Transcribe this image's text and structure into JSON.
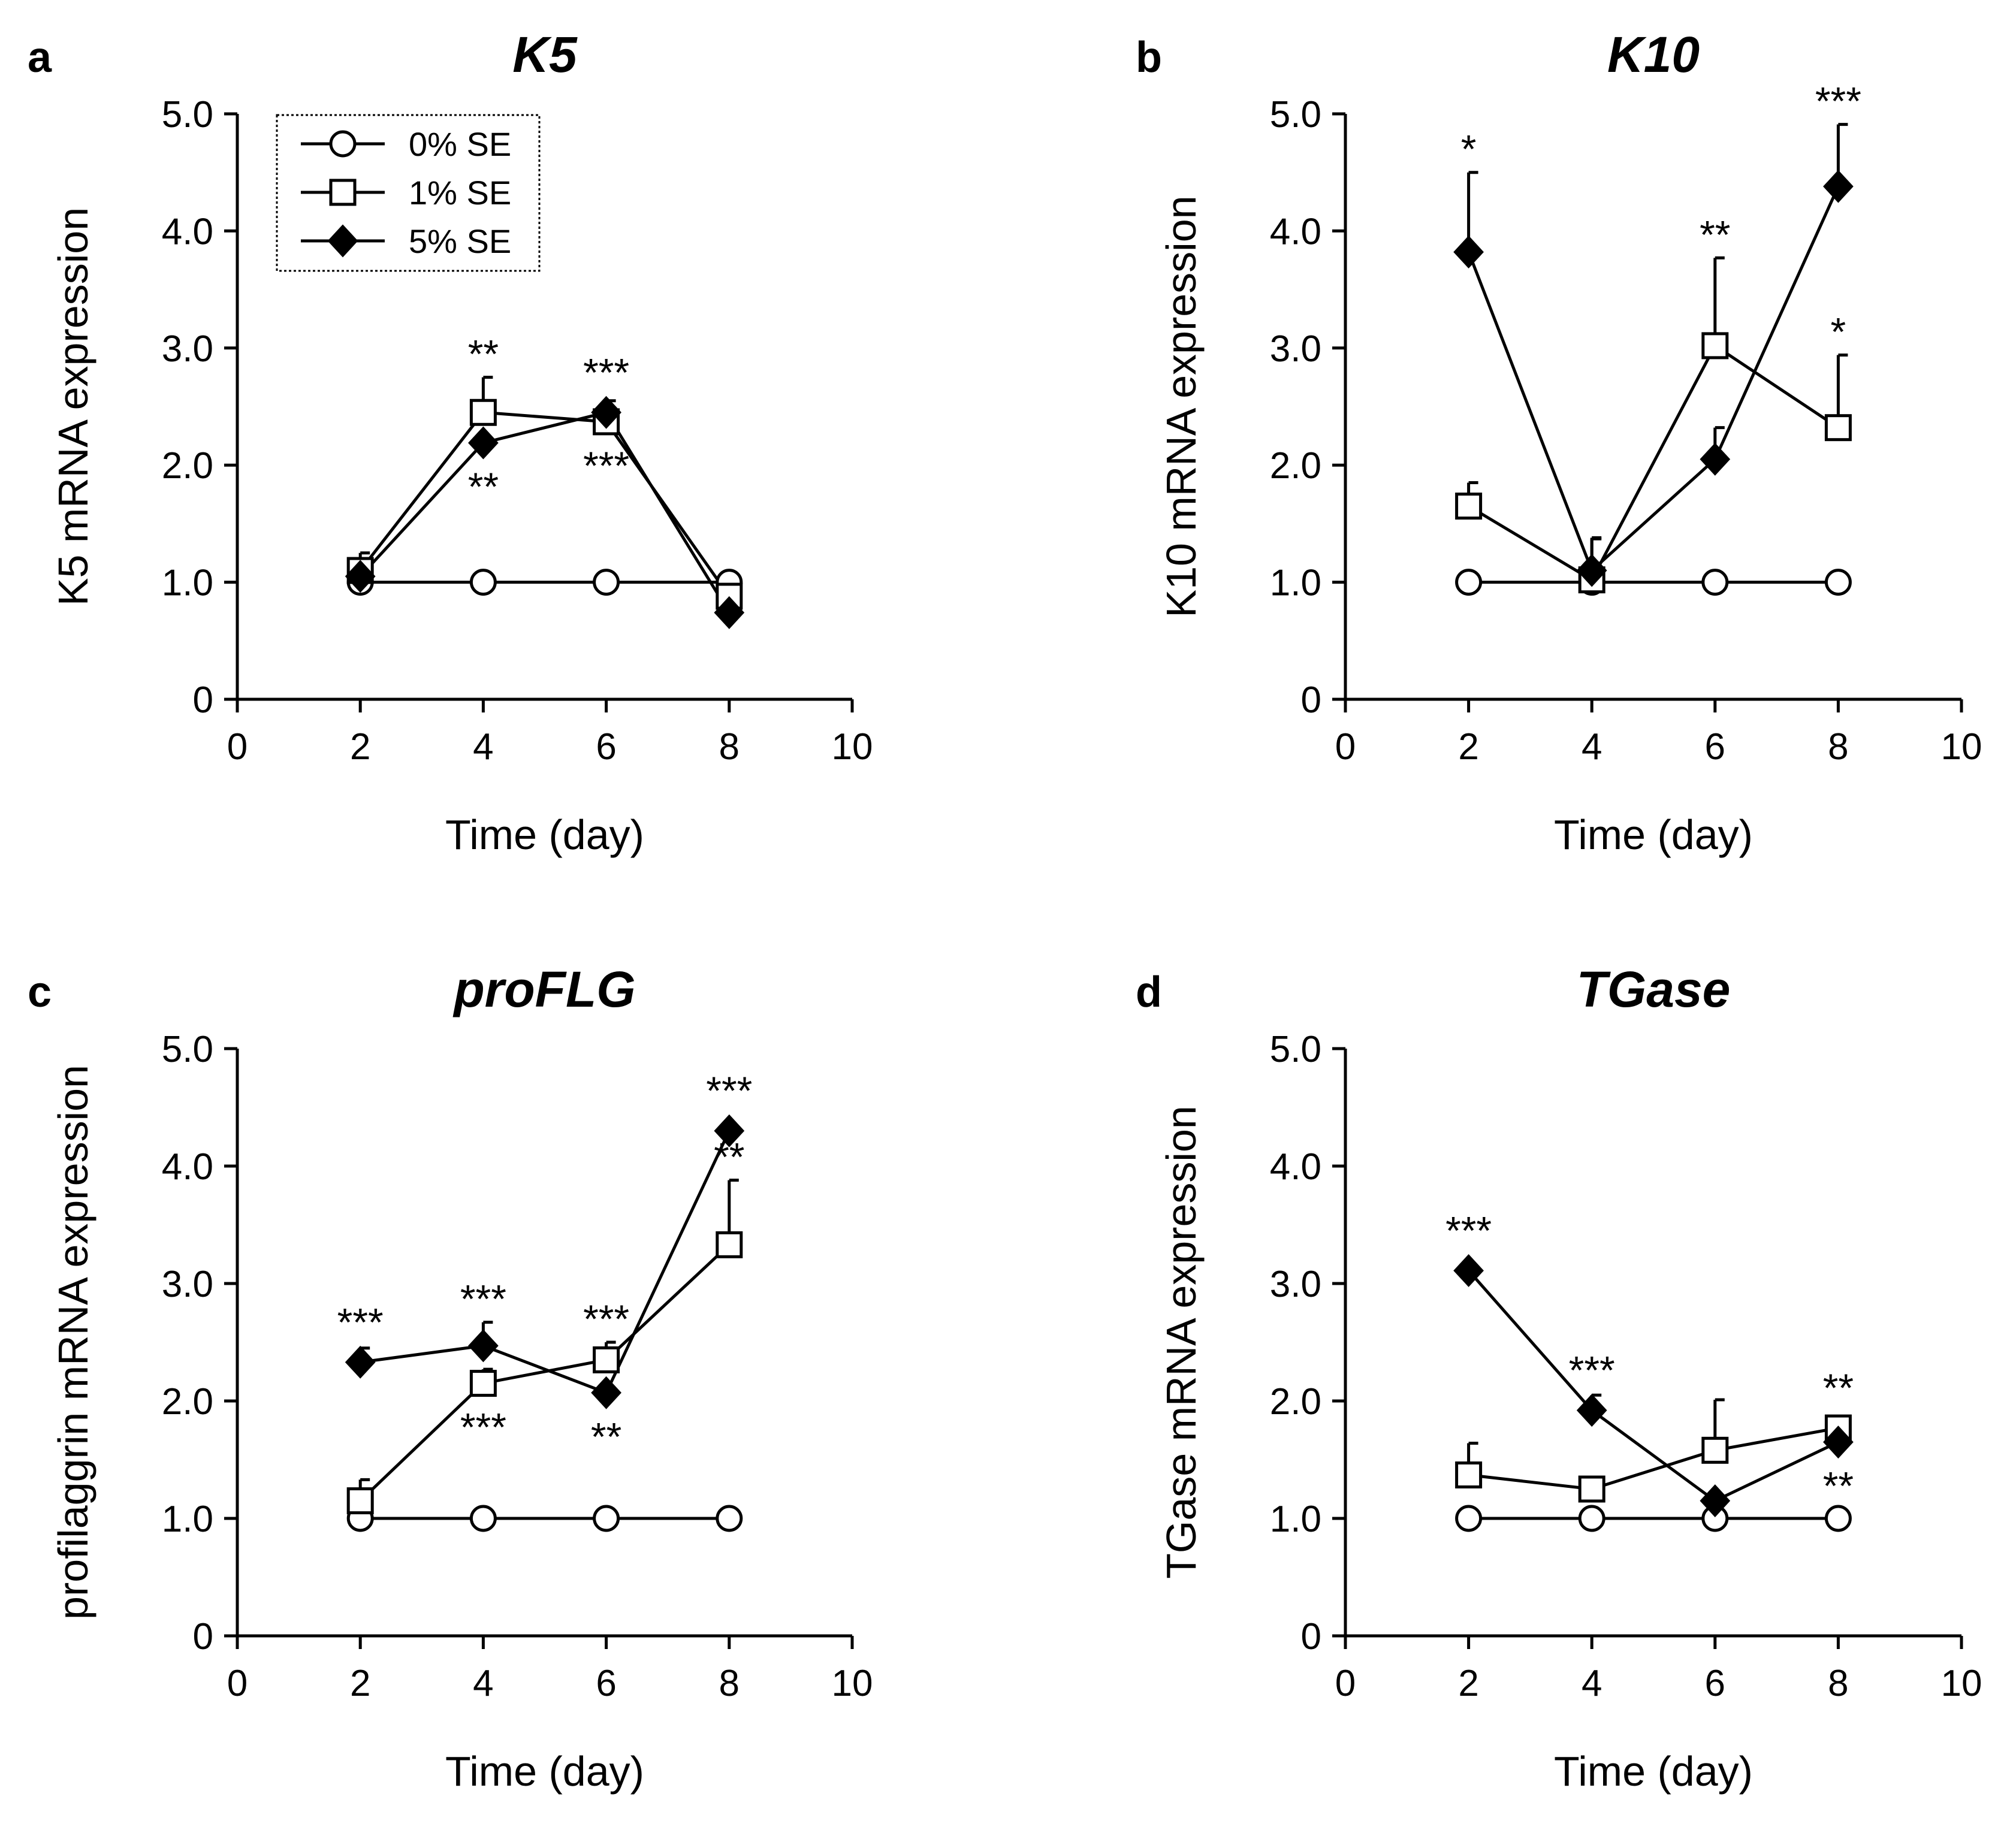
{
  "chart_data": [
    {
      "type": "line",
      "panel_label": "a",
      "title": "K5",
      "xlabel": "Time (day)",
      "ylabel": "K5 mRNA expression",
      "xlim": [
        0,
        10
      ],
      "ylim": [
        0,
        5
      ],
      "xticks": [
        "0",
        "2",
        "4",
        "6",
        "8",
        "10"
      ],
      "yticks": [
        "0",
        "1.0",
        "2.0",
        "3.0",
        "4.0",
        "5.0"
      ],
      "grid": false,
      "legend": {
        "position": "top-left",
        "entries": [
          "0% SE",
          "1% SE",
          "5% SE"
        ]
      },
      "series": [
        {
          "name": "0% SE",
          "marker": "circle",
          "x": [
            2,
            4,
            6,
            8
          ],
          "values": [
            1.0,
            1.0,
            1.0,
            1.0
          ],
          "errors": [
            0,
            0,
            0,
            0
          ]
        },
        {
          "name": "1% SE",
          "marker": "square",
          "x": [
            2,
            4,
            6,
            8
          ],
          "values": [
            1.1,
            2.45,
            2.37,
            0.88
          ],
          "errors": [
            0.15,
            0.3,
            0.12,
            0
          ],
          "stars": [
            {
              "x": 4,
              "label": "**",
              "pos": "above"
            },
            {
              "x": 6,
              "label": "***",
              "pos": "below"
            }
          ]
        },
        {
          "name": "5% SE",
          "marker": "diamond",
          "x": [
            2,
            4,
            6,
            8
          ],
          "values": [
            1.05,
            2.19,
            2.45,
            0.74
          ],
          "errors": [
            0,
            0,
            0.1,
            0
          ],
          "stars": [
            {
              "x": 4,
              "label": "**",
              "pos": "below"
            },
            {
              "x": 6,
              "label": "***",
              "pos": "above"
            }
          ]
        }
      ]
    },
    {
      "type": "line",
      "panel_label": "b",
      "title": "K10",
      "xlabel": "Time (day)",
      "ylabel": "K10 mRNA expression",
      "xlim": [
        0,
        10
      ],
      "ylim": [
        0,
        5
      ],
      "xticks": [
        "0",
        "2",
        "4",
        "6",
        "8",
        "10"
      ],
      "yticks": [
        "0",
        "1.0",
        "2.0",
        "3.0",
        "4.0",
        "5.0"
      ],
      "grid": false,
      "series": [
        {
          "name": "0% SE",
          "marker": "circle",
          "x": [
            2,
            4,
            6,
            8
          ],
          "values": [
            1.0,
            1.0,
            1.0,
            1.0
          ],
          "errors": [
            0,
            0,
            0,
            0
          ]
        },
        {
          "name": "1% SE",
          "marker": "square",
          "x": [
            2,
            4,
            6,
            8
          ],
          "values": [
            1.65,
            1.02,
            3.02,
            2.32
          ],
          "errors": [
            0.2,
            0.35,
            0.75,
            0.62
          ],
          "stars": [
            {
              "x": 6,
              "label": "**",
              "pos": "above"
            },
            {
              "x": 8,
              "label": "*",
              "pos": "above"
            }
          ]
        },
        {
          "name": "5% SE",
          "marker": "diamond",
          "x": [
            2,
            4,
            6,
            8
          ],
          "values": [
            3.82,
            1.1,
            2.05,
            4.38
          ],
          "errors": [
            0.68,
            0.28,
            0.27,
            0.53
          ],
          "stars": [
            {
              "x": 2,
              "label": "*",
              "pos": "above"
            },
            {
              "x": 8,
              "label": "***",
              "pos": "above"
            }
          ]
        }
      ]
    },
    {
      "type": "line",
      "panel_label": "c",
      "title": "proFLG",
      "xlabel": "Time (day)",
      "ylabel": "profilaggrin mRNA expression",
      "xlim": [
        0,
        10
      ],
      "ylim": [
        0,
        5
      ],
      "xticks": [
        "0",
        "2",
        "4",
        "6",
        "8",
        "10"
      ],
      "yticks": [
        "0",
        "1.0",
        "2.0",
        "3.0",
        "4.0",
        "5.0"
      ],
      "grid": false,
      "series": [
        {
          "name": "0% SE",
          "marker": "circle",
          "x": [
            2,
            4,
            6,
            8
          ],
          "values": [
            1.0,
            1.0,
            1.0,
            1.0
          ],
          "errors": [
            0,
            0,
            0,
            0
          ]
        },
        {
          "name": "1% SE",
          "marker": "square",
          "x": [
            2,
            4,
            6,
            8
          ],
          "values": [
            1.15,
            2.15,
            2.35,
            3.33
          ],
          "errors": [
            0.18,
            0.12,
            0.15,
            0.55
          ],
          "stars": [
            {
              "x": 4,
              "label": "***",
              "pos": "below"
            },
            {
              "x": 6,
              "label": "***",
              "pos": "above"
            },
            {
              "x": 8,
              "label": "**",
              "pos": "above"
            }
          ]
        },
        {
          "name": "5% SE",
          "marker": "diamond",
          "x": [
            2,
            4,
            6,
            8
          ],
          "values": [
            2.33,
            2.47,
            2.07,
            4.3
          ],
          "errors": [
            0.12,
            0.2,
            0,
            0
          ],
          "stars": [
            {
              "x": 2,
              "label": "***",
              "pos": "above"
            },
            {
              "x": 4,
              "label": "***",
              "pos": "above"
            },
            {
              "x": 6,
              "label": "**",
              "pos": "below"
            },
            {
              "x": 8,
              "label": "***",
              "pos": "above"
            }
          ]
        }
      ]
    },
    {
      "type": "line",
      "panel_label": "d",
      "title": "TGase",
      "xlabel": "Time (day)",
      "ylabel": "TGase mRNA expression",
      "xlim": [
        0,
        10
      ],
      "ylim": [
        0,
        5
      ],
      "xticks": [
        "0",
        "2",
        "4",
        "6",
        "8",
        "10"
      ],
      "yticks": [
        "0",
        "1.0",
        "2.0",
        "3.0",
        "4.0",
        "5.0"
      ],
      "grid": false,
      "series": [
        {
          "name": "0% SE",
          "marker": "circle",
          "x": [
            2,
            4,
            6,
            8
          ],
          "values": [
            1.0,
            1.0,
            1.0,
            1.0
          ],
          "errors": [
            0,
            0,
            0,
            0
          ]
        },
        {
          "name": "1% SE",
          "marker": "square",
          "x": [
            2,
            4,
            6,
            8
          ],
          "values": [
            1.37,
            1.25,
            1.58,
            1.77
          ],
          "errors": [
            0.27,
            0,
            0.43,
            0
          ],
          "stars": [
            {
              "x": 8,
              "label": "**",
              "pos": "above"
            }
          ]
        },
        {
          "name": "5% SE",
          "marker": "diamond",
          "x": [
            2,
            4,
            6,
            8
          ],
          "values": [
            3.11,
            1.92,
            1.15,
            1.65
          ],
          "errors": [
            0,
            0.13,
            0,
            0
          ],
          "stars": [
            {
              "x": 2,
              "label": "***",
              "pos": "above"
            },
            {
              "x": 4,
              "label": "***",
              "pos": "above"
            },
            {
              "x": 8,
              "label": "**",
              "pos": "below"
            }
          ]
        }
      ]
    }
  ]
}
